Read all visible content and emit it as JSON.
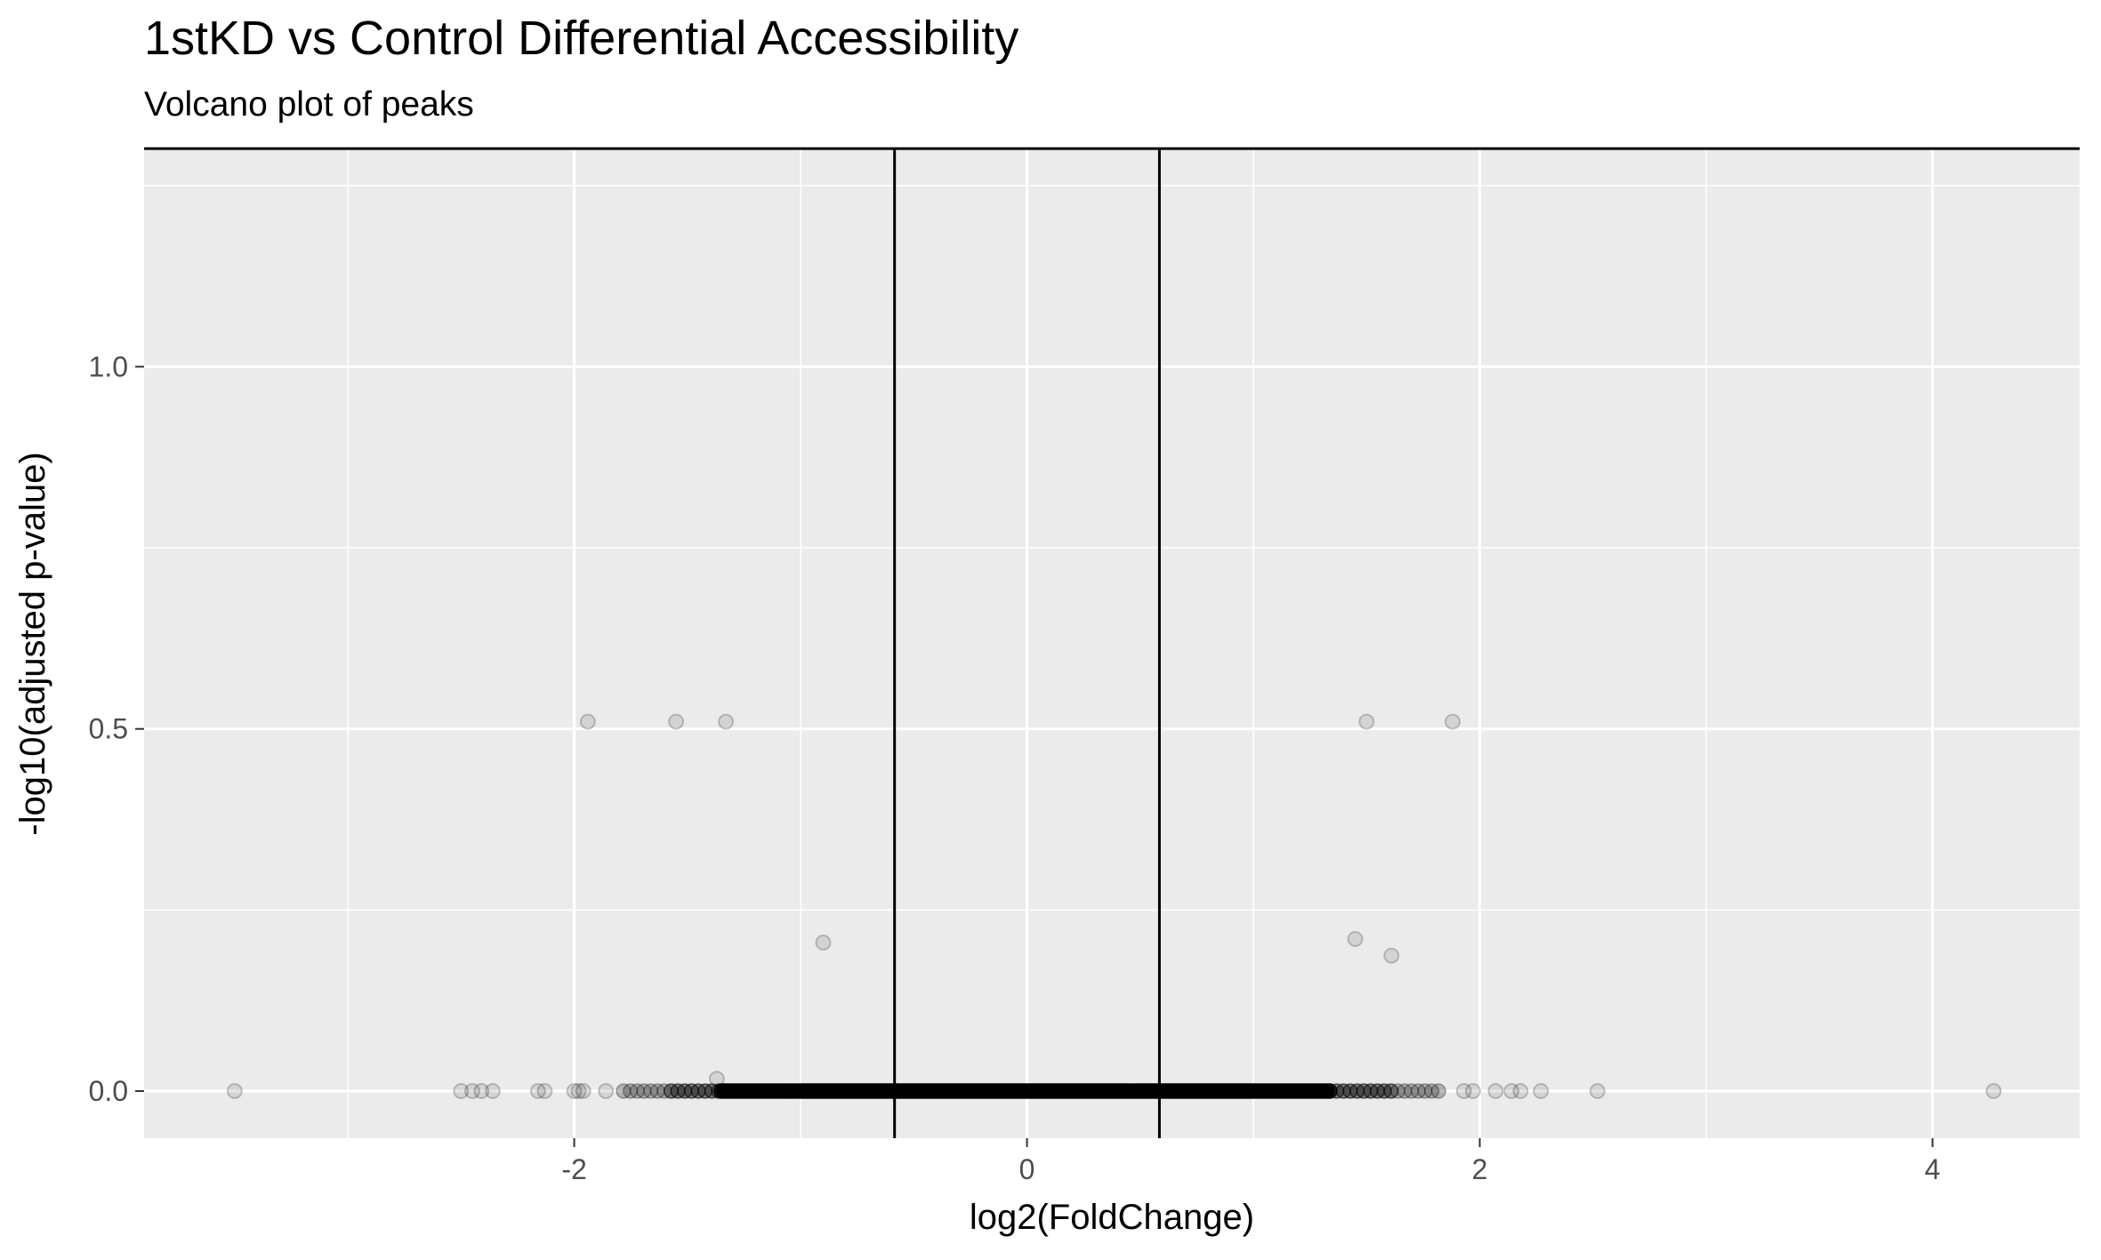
{
  "chart_data": {
    "type": "scatter",
    "title": "1stKD vs Control Differential Accessibility",
    "subtitle": "Volcano plot of peaks",
    "xlabel": "log2(FoldChange)",
    "ylabel": "-log10(adjusted p-value)",
    "xlim": [
      -3.9,
      4.65
    ],
    "ylim": [
      -0.065,
      1.3
    ],
    "x_ticks": [
      -2,
      0,
      2,
      4
    ],
    "x_tick_labels": [
      "-2",
      "0",
      "2",
      "4"
    ],
    "y_ticks": [
      0.0,
      0.5,
      1.0
    ],
    "y_tick_labels": [
      "0.0",
      "0.5",
      "1.0"
    ],
    "grid": true,
    "point_color": "#000000",
    "point_alpha": 0.1,
    "panel_background": "#ebebeb",
    "grid_color": "#ffffff",
    "reference_lines": {
      "vertical_x": [
        -0.585,
        0.585
      ],
      "horizontal_y": [
        1.301
      ],
      "color": "#000000"
    },
    "points": [
      {
        "x": -1.94,
        "y": 0.51
      },
      {
        "x": -1.55,
        "y": 0.51
      },
      {
        "x": -1.33,
        "y": 0.51
      },
      {
        "x": 1.5,
        "y": 0.51
      },
      {
        "x": 1.88,
        "y": 0.51
      },
      {
        "x": -0.9,
        "y": 0.205
      },
      {
        "x": 1.45,
        "y": 0.21
      },
      {
        "x": 1.61,
        "y": 0.187
      },
      {
        "x": -1.37,
        "y": 0.017
      },
      {
        "x": -3.5,
        "y": 0.0
      },
      {
        "x": -2.5,
        "y": 0.0
      },
      {
        "x": -2.45,
        "y": 0.0
      },
      {
        "x": -2.41,
        "y": 0.0
      },
      {
        "x": -2.36,
        "y": 0.0
      },
      {
        "x": -2.16,
        "y": 0.0
      },
      {
        "x": -2.13,
        "y": 0.0
      },
      {
        "x": -2.0,
        "y": 0.0
      },
      {
        "x": -1.98,
        "y": 0.0
      },
      {
        "x": -1.96,
        "y": 0.0
      },
      {
        "x": -1.86,
        "y": 0.0
      },
      {
        "x": 1.93,
        "y": 0.0
      },
      {
        "x": 1.97,
        "y": 0.0
      },
      {
        "x": 2.07,
        "y": 0.0
      },
      {
        "x": 2.14,
        "y": 0.0
      },
      {
        "x": 2.18,
        "y": 0.0
      },
      {
        "x": 2.27,
        "y": 0.0
      },
      {
        "x": 2.52,
        "y": 0.0
      },
      {
        "x": 4.27,
        "y": 0.0
      }
    ],
    "dense_band": {
      "y": 0.0,
      "x_range": [
        -1.8,
        1.82
      ]
    }
  }
}
